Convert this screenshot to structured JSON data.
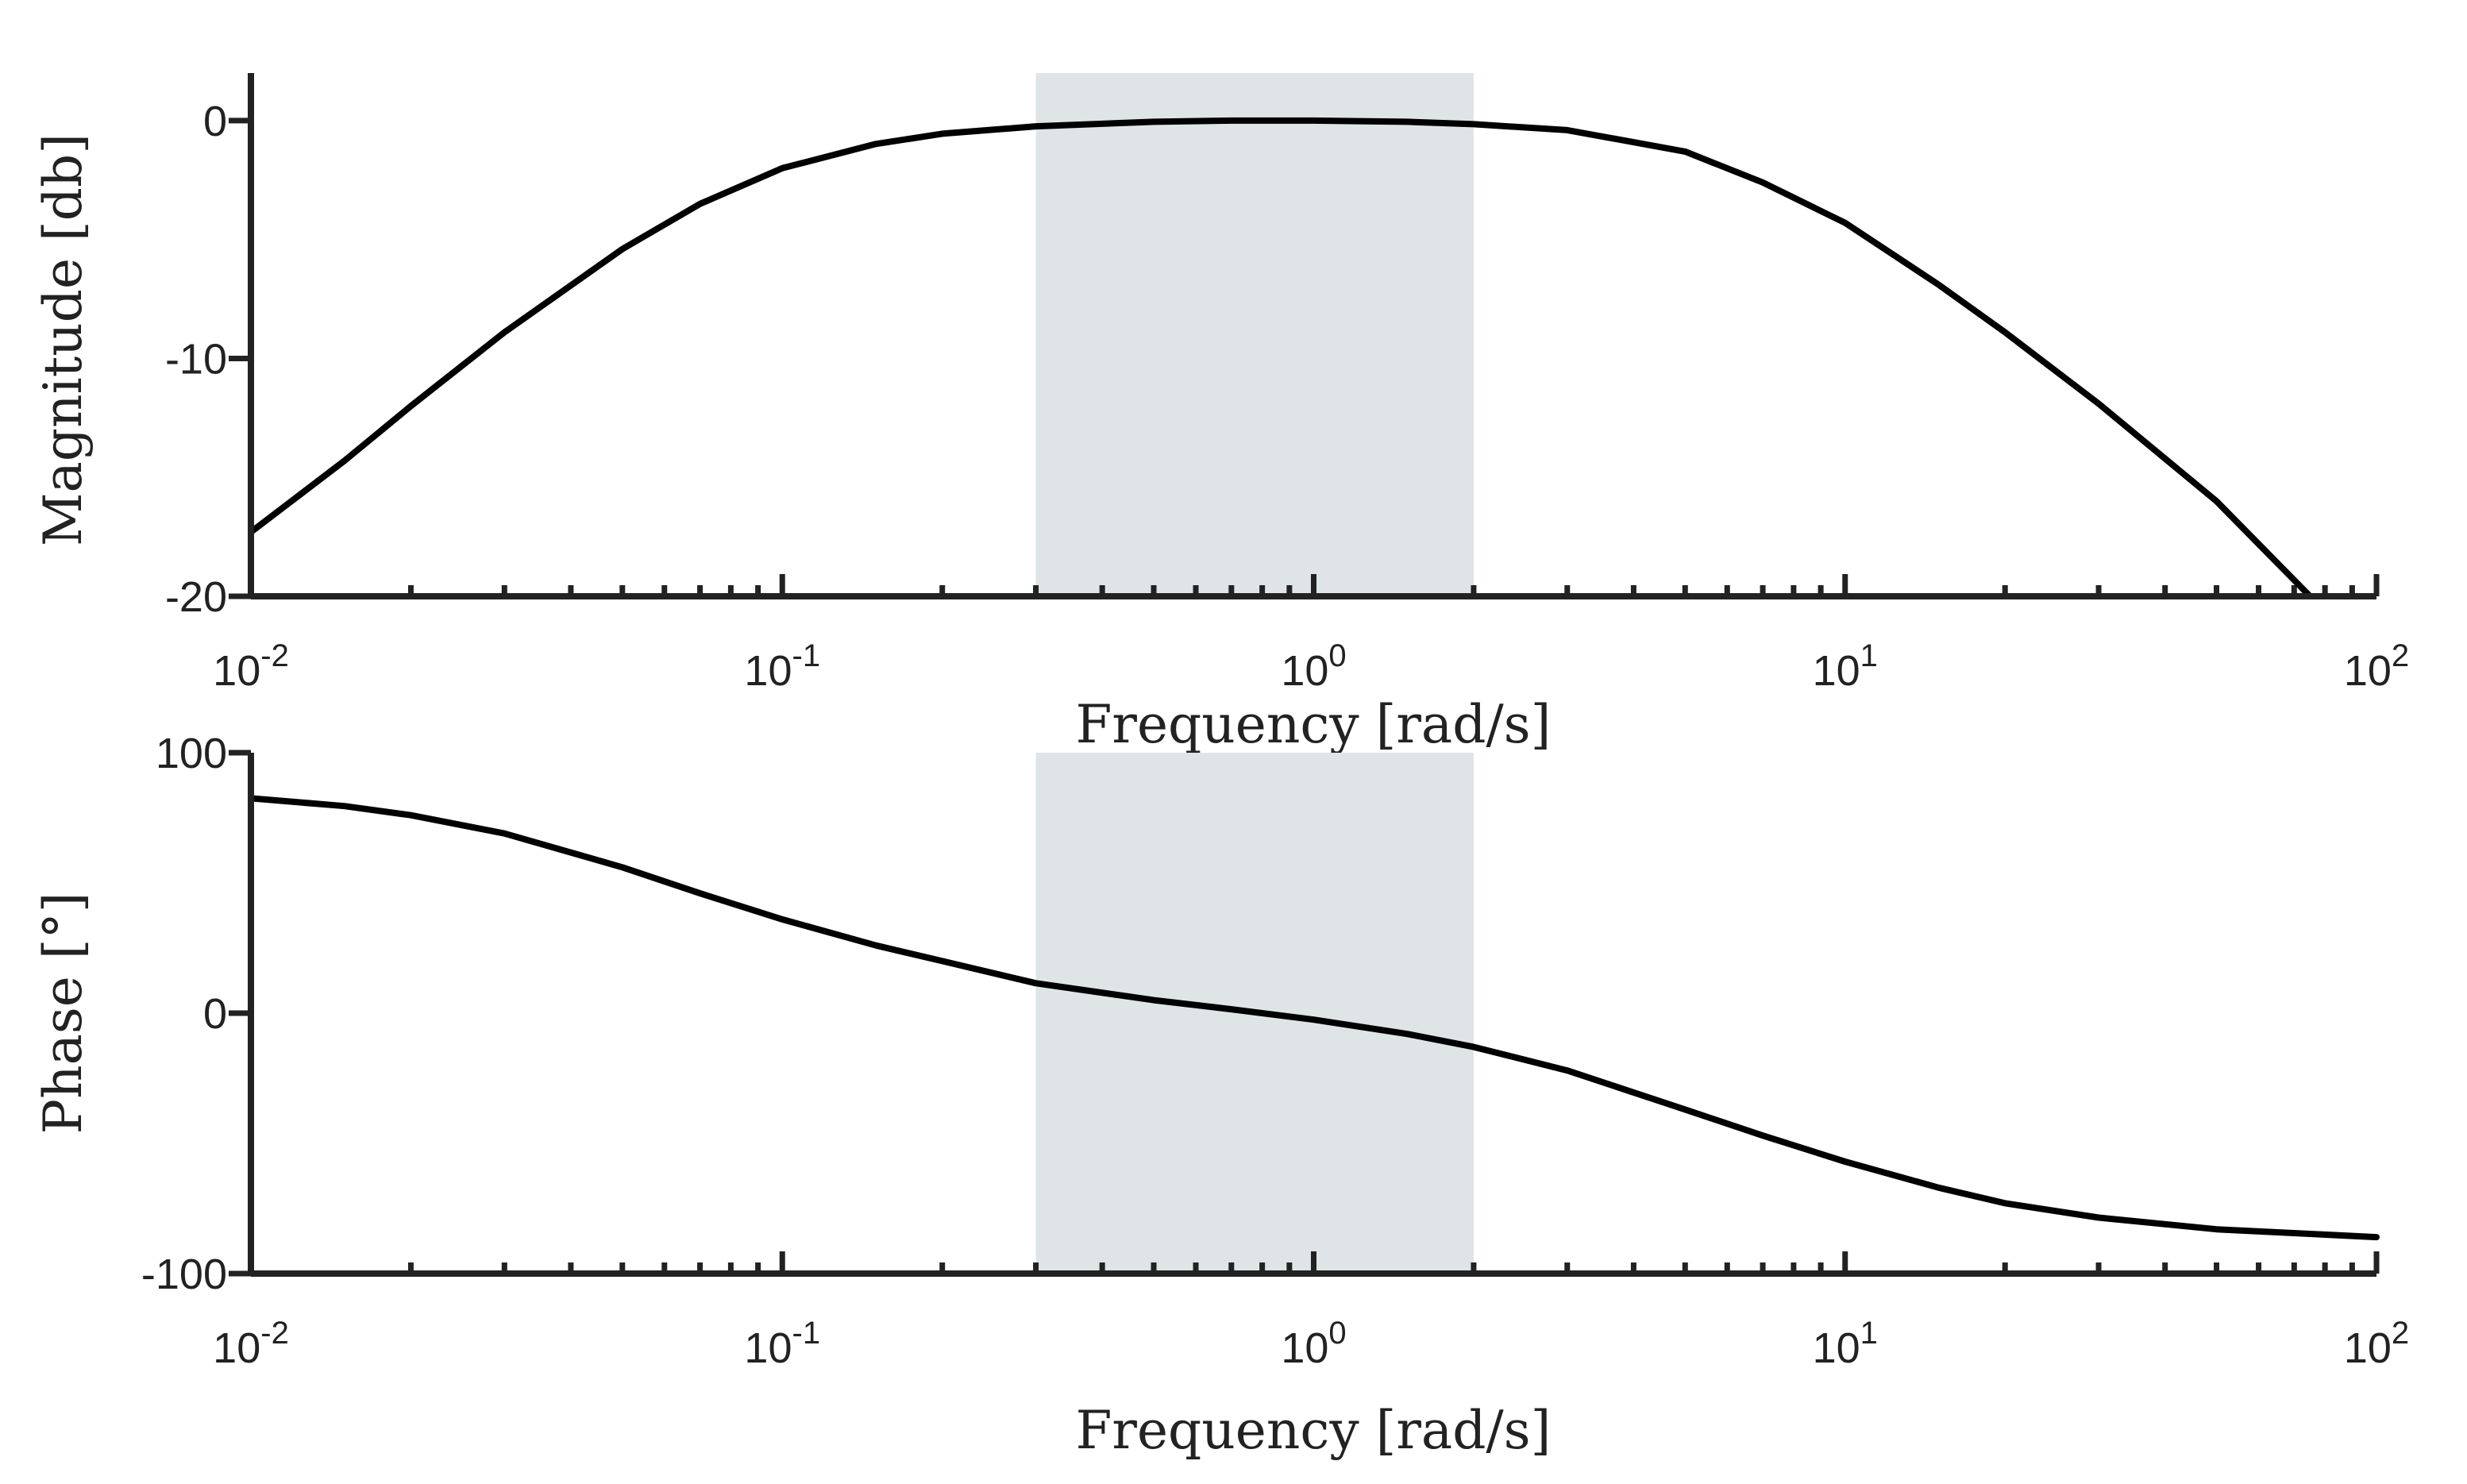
{
  "chart_data": [
    {
      "type": "line",
      "title": "",
      "xlabel": "Frequency [rad/s]",
      "ylabel": "Magnitude [db]",
      "xscale": "log",
      "xlim": [
        0.01,
        100
      ],
      "ylim": [
        -20,
        2
      ],
      "x_ticks": [
        {
          "base": "10",
          "exp": "-2",
          "value": 0.01
        },
        {
          "base": "10",
          "exp": "-1",
          "value": 0.1
        },
        {
          "base": "10",
          "exp": "0",
          "value": 1
        },
        {
          "base": "10",
          "exp": "1",
          "value": 10
        },
        {
          "base": "10",
          "exp": "2",
          "value": 100
        }
      ],
      "y_ticks": [
        {
          "label": "0",
          "value": 0
        },
        {
          "label": "-10",
          "value": -10
        },
        {
          "label": "-20",
          "value": -20
        }
      ],
      "shaded_band": {
        "x": [
          0.3,
          2
        ],
        "color": "#dfe5e7"
      },
      "line_color": "#000000",
      "grid": false,
      "series": [
        {
          "x": [
            0.01,
            0.015,
            0.02,
            0.03,
            0.05,
            0.07,
            0.1,
            0.15,
            0.2,
            0.3,
            0.5,
            0.7,
            1,
            1.5,
            2,
            3,
            5,
            7,
            10,
            15,
            20,
            30,
            50,
            75
          ],
          "values": [
            -17.3,
            -14.3,
            -12.0,
            -8.9,
            -5.4,
            -3.5,
            -2.0,
            -0.98,
            -0.55,
            -0.24,
            -0.05,
            0,
            0,
            -0.05,
            -0.15,
            -0.4,
            -1.3,
            -2.6,
            -4.3,
            -6.9,
            -8.9,
            -11.9,
            -16.0,
            -20.0
          ]
        }
      ]
    },
    {
      "type": "line",
      "title": "",
      "xlabel": "Frequency [rad/s]",
      "ylabel": "Phase [°]",
      "xscale": "log",
      "xlim": [
        0.01,
        100
      ],
      "ylim": [
        -100,
        100
      ],
      "x_ticks": [
        {
          "base": "10",
          "exp": "-2",
          "value": 0.01
        },
        {
          "base": "10",
          "exp": "-1",
          "value": 0.1
        },
        {
          "base": "10",
          "exp": "0",
          "value": 1
        },
        {
          "base": "10",
          "exp": "1",
          "value": 10
        },
        {
          "base": "10",
          "exp": "2",
          "value": 100
        }
      ],
      "y_ticks": [
        {
          "label": "100",
          "value": 100
        },
        {
          "label": "0",
          "value": 0
        },
        {
          "label": "-100",
          "value": -100
        }
      ],
      "shaded_band": {
        "x": [
          0.3,
          2
        ],
        "color": "#dfe5e7"
      },
      "line_color": "#000000",
      "grid": false,
      "series": [
        {
          "x": [
            0.01,
            0.015,
            0.02,
            0.03,
            0.05,
            0.07,
            0.1,
            0.15,
            0.2,
            0.3,
            0.5,
            0.7,
            1,
            1.5,
            2,
            3,
            5,
            7,
            10,
            15,
            20,
            30,
            50,
            100
          ],
          "values": [
            82.5,
            79.5,
            76,
            69,
            56,
            46,
            36,
            26,
            20,
            11.5,
            5,
            1.5,
            -2.5,
            -8,
            -13,
            -22,
            -37,
            -47,
            -57,
            -67,
            -73,
            -78.5,
            -83,
            -86
          ]
        }
      ]
    }
  ]
}
